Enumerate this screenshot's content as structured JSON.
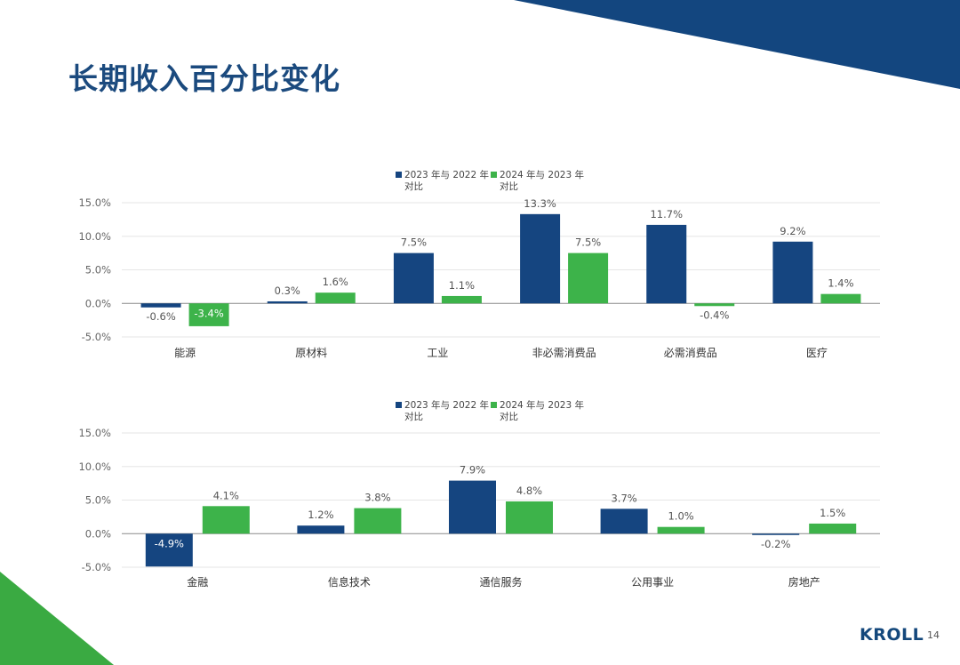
{
  "page": {
    "title": "长期收入百分比变化",
    "logo": "KROLL",
    "page_number": "14",
    "colors": {
      "navy": "#154580",
      "green": "#3db34a",
      "title": "#1b4a7e",
      "deco_green": "#3aaa42"
    }
  },
  "chart_data": [
    {
      "type": "bar",
      "title": "",
      "xlabel": "",
      "ylabel": "",
      "ylim": [
        -5,
        15
      ],
      "yticks": [
        "15.0%",
        "10.0%",
        "5.0%",
        "0.0%",
        "-5.0%"
      ],
      "legend_position": "top-center",
      "categories": [
        "能源",
        "原材料",
        "工业",
        "非必需消费品",
        "必需消费品",
        "医疗"
      ],
      "series": [
        {
          "name_line1": "2023 年与 2022 年",
          "name_line2": "对比",
          "color": "#154580",
          "values": [
            -0.6,
            0.3,
            7.5,
            13.3,
            11.7,
            9.2
          ],
          "labels": [
            "-0.6%",
            "0.3%",
            "7.5%",
            "13.3%",
            "11.7%",
            "9.2%"
          ]
        },
        {
          "name_line1": "2024 年与 2023 年",
          "name_line2": "对比",
          "color": "#3db34a",
          "values": [
            -3.4,
            1.6,
            1.1,
            7.5,
            -0.4,
            1.4
          ],
          "labels": [
            "-3.4%",
            "1.6%",
            "1.1%",
            "7.5%",
            "-0.4%",
            "1.4%"
          ]
        }
      ]
    },
    {
      "type": "bar",
      "title": "",
      "xlabel": "",
      "ylabel": "",
      "ylim": [
        -5,
        15
      ],
      "yticks": [
        "15.0%",
        "10.0%",
        "5.0%",
        "0.0%",
        "-5.0%"
      ],
      "legend_position": "top-center",
      "categories": [
        "金融",
        "信息技术",
        "通信服务",
        "公用事业",
        "房地产"
      ],
      "series": [
        {
          "name_line1": "2023 年与 2022 年",
          "name_line2": "对比",
          "color": "#154580",
          "values": [
            -4.9,
            1.2,
            7.9,
            3.7,
            -0.2
          ],
          "labels": [
            "-4.9%",
            "1.2%",
            "7.9%",
            "3.7%",
            "-0.2%"
          ]
        },
        {
          "name_line1": "2024 年与 2023 年",
          "name_line2": "对比",
          "color": "#3db34a",
          "values": [
            4.1,
            3.8,
            4.8,
            1.0,
            1.5
          ],
          "labels": [
            "4.1%",
            "3.8%",
            "4.8%",
            "1.0%",
            "1.5%"
          ]
        }
      ]
    }
  ]
}
